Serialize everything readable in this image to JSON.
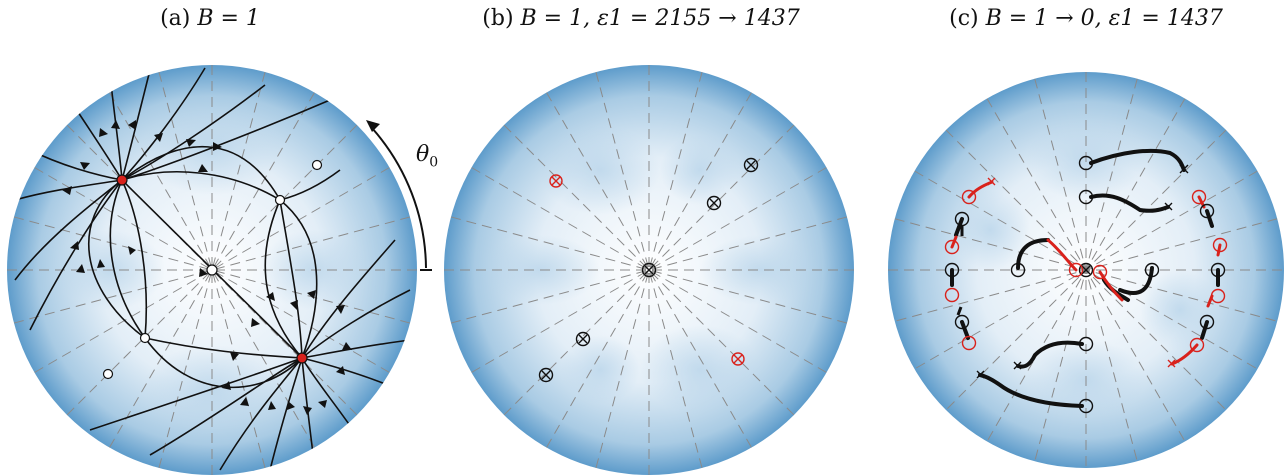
{
  "panels": [
    {
      "id": "a",
      "title": "(a) B = 1",
      "label_prefix": "(a) ",
      "label_math": "B = 1"
    },
    {
      "id": "b",
      "title": "(b) B = 1, ε1 = 2155 → 1437",
      "label_prefix": "(b) ",
      "label_math": "B = 1, ε1 = 2155 → 1437"
    },
    {
      "id": "c",
      "title": "(c) B = 1 → 0, ε1 = 1437",
      "label_prefix": "(c) ",
      "label_math": "B = 1 → 0, ε1 = 1437"
    }
  ],
  "annotation": {
    "theta_symbol": "θ",
    "theta_sub": "0"
  },
  "colors": {
    "disk_edge": "#4a8fc2",
    "disk_center": "#ffffff",
    "guide": "#8a8a8a",
    "stream": "#111111",
    "highlight": "#d9221c"
  },
  "guide_count": 12
}
